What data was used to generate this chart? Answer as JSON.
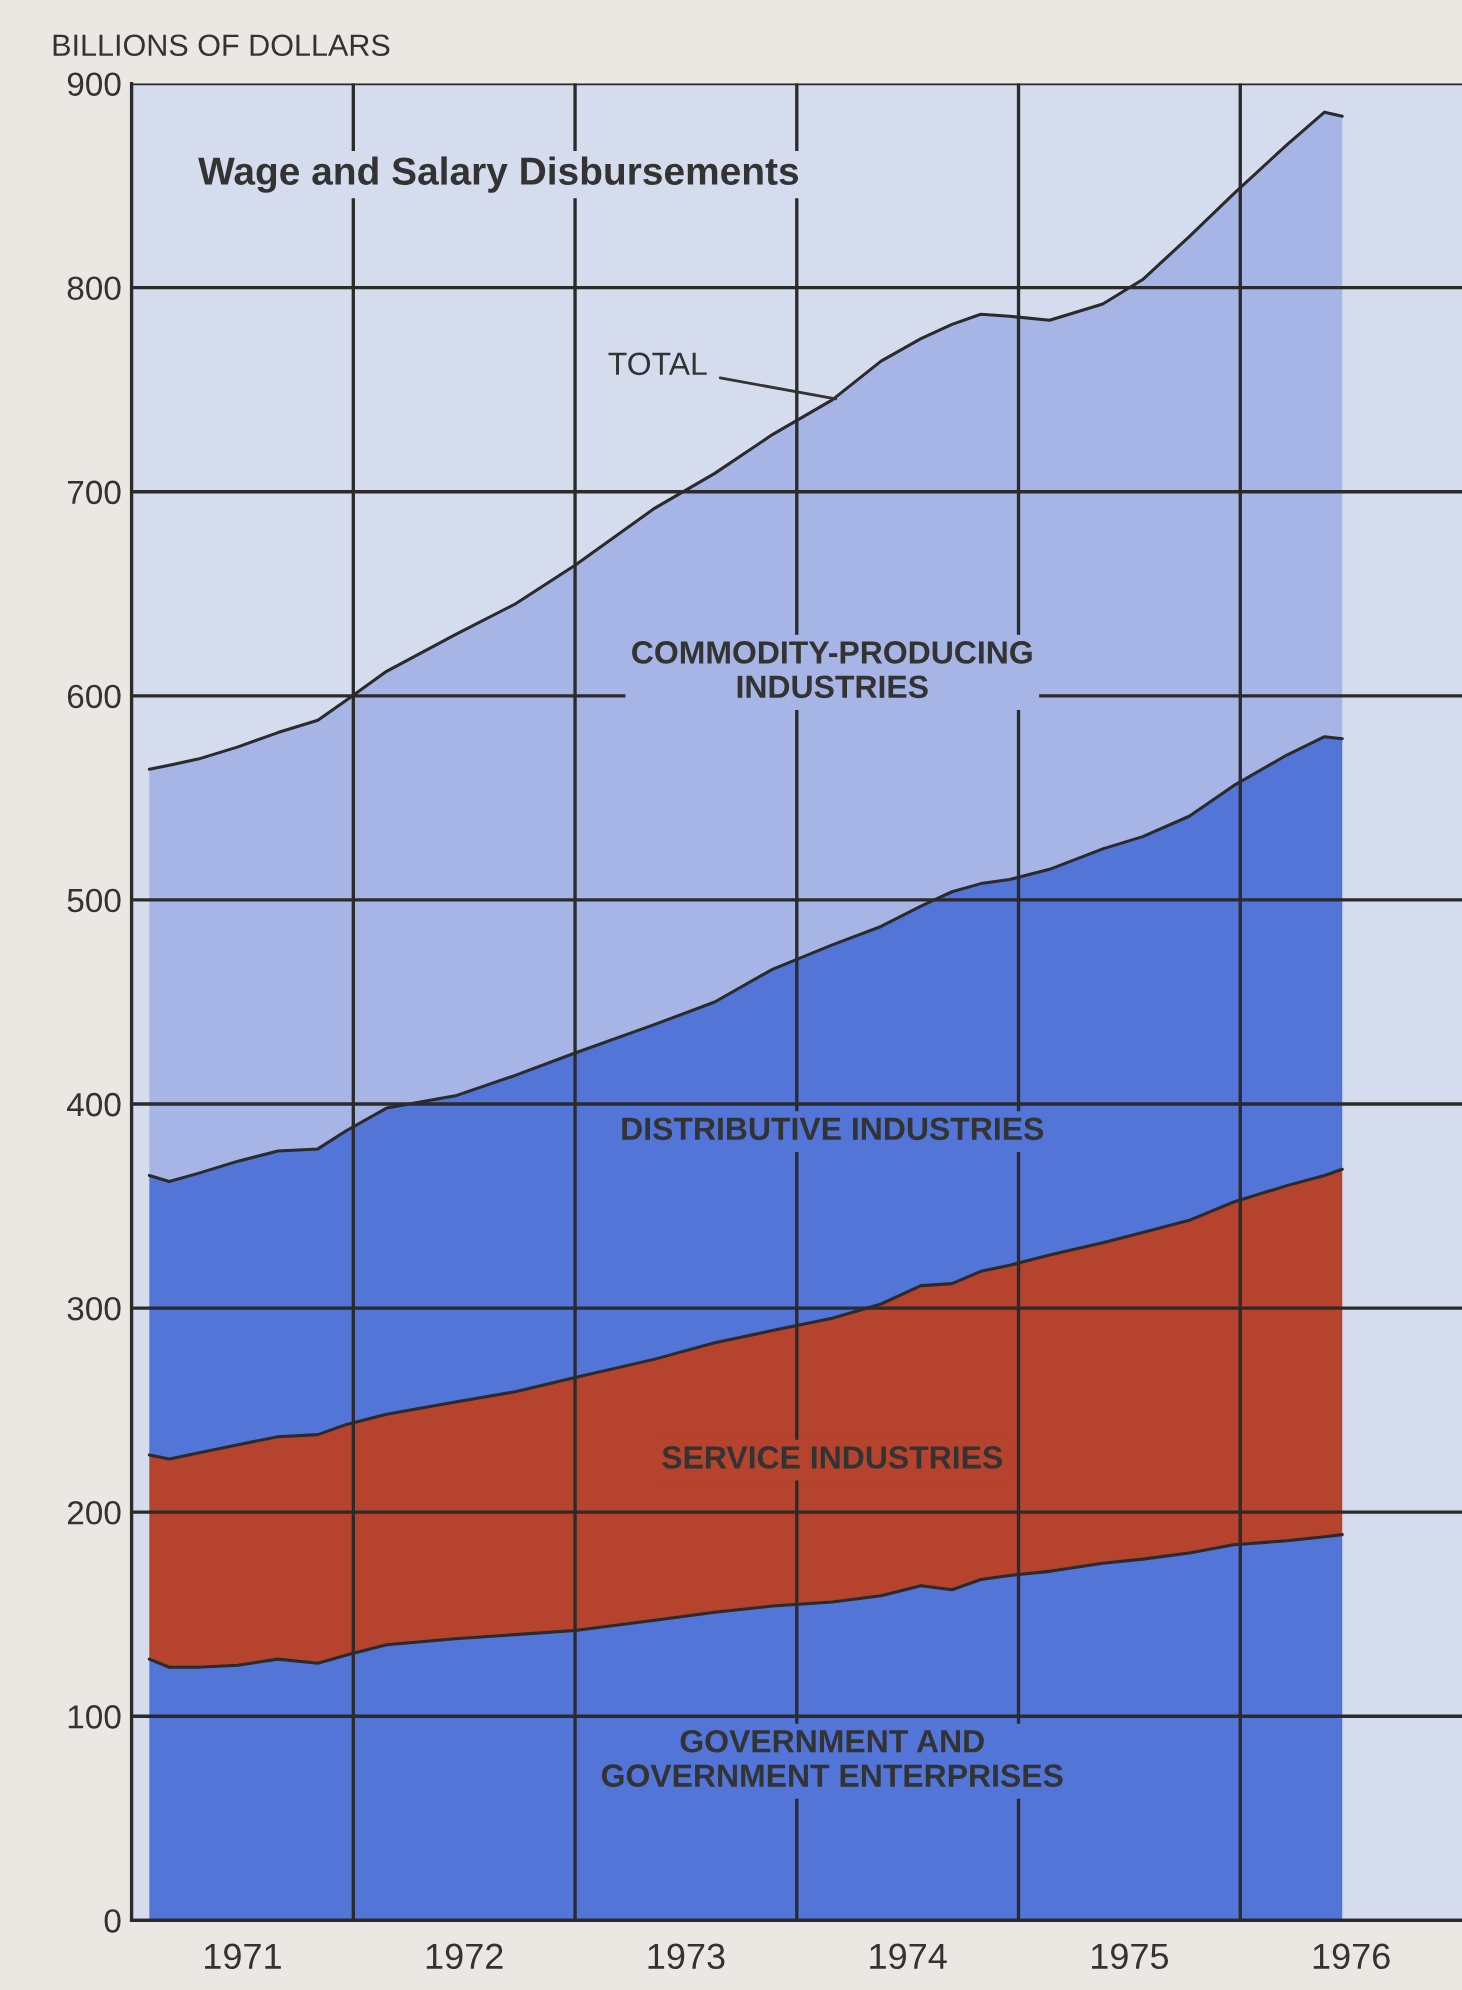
{
  "chart_data": {
    "type": "area",
    "stacked": true,
    "title": "Wage and Salary Disbursements",
    "ylabel": "BILLIONS OF DOLLARS",
    "x": [
      1971.08,
      1971.17,
      1971.3,
      1971.48,
      1971.66,
      1971.84,
      1971.97,
      1972.15,
      1972.46,
      1972.73,
      1973.0,
      1973.36,
      1973.63,
      1973.89,
      1974.16,
      1974.38,
      1974.56,
      1974.7,
      1974.83,
      1974.96,
      1975.14,
      1975.38,
      1975.56,
      1975.77,
      1975.97,
      1976.21,
      1976.38,
      1976.46
    ],
    "series": [
      {
        "name": "GOVERNMENT AND\nGOVERNMENT ENTERPRISES",
        "color": "#5375d8",
        "values": [
          128,
          124,
          124,
          125,
          128,
          126,
          130,
          135,
          138,
          140,
          142,
          147,
          151,
          154,
          156,
          159,
          164,
          162,
          167,
          169,
          171,
          175,
          177,
          180,
          184,
          186,
          188,
          189
        ]
      },
      {
        "name": "SERVICE INDUSTRIES",
        "color": "#b5432e",
        "values": [
          100,
          102,
          105,
          108,
          109,
          112,
          113,
          113,
          116,
          119,
          124,
          128,
          132,
          135,
          139,
          143,
          147,
          150,
          151,
          152,
          155,
          157,
          160,
          163,
          168,
          174,
          177,
          179
        ]
      },
      {
        "name": "DISTRIBUTIVE INDUSTRIES",
        "color": "#5375d8",
        "values": [
          137,
          136,
          137,
          139,
          140,
          140,
          144,
          150,
          150,
          155,
          159,
          164,
          167,
          177,
          183,
          185,
          186,
          192,
          190,
          189,
          189,
          193,
          194,
          198,
          204,
          211,
          215,
          211
        ]
      },
      {
        "name": "COMMODITY-PRODUCING\nINDUSTRIES",
        "color": "#a6b5e6",
        "values": [
          199,
          204,
          203,
          203,
          205,
          210,
          211,
          214,
          226,
          231,
          239,
          253,
          259,
          262,
          267,
          277,
          278,
          278,
          279,
          276,
          269,
          267,
          273,
          284,
          290,
          299,
          306,
          305
        ]
      }
    ],
    "annotations": [
      {
        "text": "TOTAL",
        "x": 1974.2,
        "y": 745
      }
    ],
    "xlim": [
      1971,
      1977
    ],
    "ylim": [
      0,
      900
    ],
    "xticks": [
      {
        "value": 1971.5,
        "label": "1971"
      },
      {
        "value": 1972,
        "label": null
      },
      {
        "value": 1972.5,
        "label": "1972"
      },
      {
        "value": 1973,
        "label": null
      },
      {
        "value": 1973.5,
        "label": "1973"
      },
      {
        "value": 1974,
        "label": null
      },
      {
        "value": 1974.5,
        "label": "1974"
      },
      {
        "value": 1975,
        "label": null
      },
      {
        "value": 1975.5,
        "label": "1975"
      },
      {
        "value": 1976,
        "label": null
      },
      {
        "value": 1976.5,
        "label": "1976"
      }
    ],
    "yticks": [
      0,
      100,
      200,
      300,
      400,
      500,
      600,
      700,
      800,
      900
    ],
    "grid": true,
    "legend": false
  }
}
